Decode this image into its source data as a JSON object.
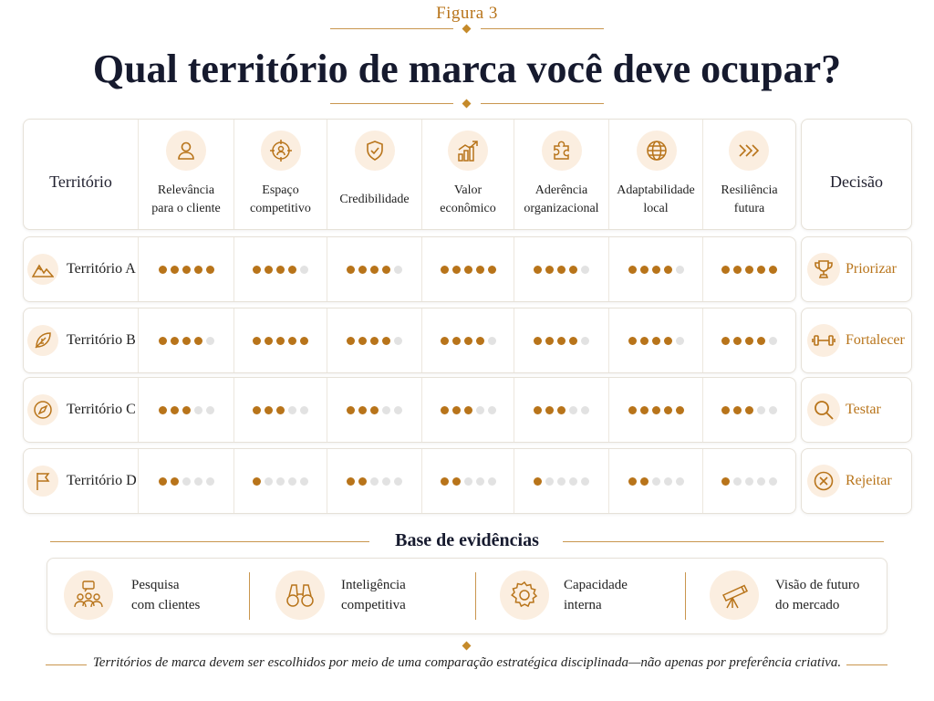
{
  "figure_label": "Figura 3",
  "title": "Qual território de marca você deve ocupar?",
  "table": {
    "row_header": "Território",
    "decision_header": "Decisão",
    "criteria": [
      {
        "label_1": "Relevância",
        "label_2": "para o cliente",
        "icon": "person-icon"
      },
      {
        "label_1": "Espaço",
        "label_2": "competitivo",
        "icon": "target-person-icon"
      },
      {
        "label_1": "Credibilidade",
        "label_2": "",
        "icon": "shield-check-icon"
      },
      {
        "label_1": "Valor",
        "label_2": "econômico",
        "icon": "growth-chart-icon"
      },
      {
        "label_1": "Aderência",
        "label_2": "organizacional",
        "icon": "puzzle-icon"
      },
      {
        "label_1": "Adaptabilidade",
        "label_2": "local",
        "icon": "globe-icon"
      },
      {
        "label_1": "Resiliência",
        "label_2": "futura",
        "icon": "chevrons-right-icon"
      }
    ],
    "rows": [
      {
        "name": "Território A",
        "icon": "mountains-icon",
        "scores": [
          5,
          4,
          4,
          5,
          4,
          4,
          5
        ],
        "decision": "Priorizar",
        "decision_icon": "trophy-icon"
      },
      {
        "name": "Território B",
        "icon": "leaf-icon",
        "scores": [
          4,
          5,
          4,
          4,
          4,
          4,
          4
        ],
        "decision": "Fortalecer",
        "decision_icon": "dumbbell-icon"
      },
      {
        "name": "Território C",
        "icon": "compass-icon",
        "scores": [
          3,
          3,
          3,
          3,
          3,
          5,
          3
        ],
        "decision": "Testar",
        "decision_icon": "magnifier-icon"
      },
      {
        "name": "Território D",
        "icon": "flag-icon",
        "scores": [
          2,
          1,
          2,
          2,
          1,
          2,
          1
        ],
        "decision": "Rejeitar",
        "decision_icon": "x-circle-icon"
      }
    ],
    "max_score": 5,
    "accent_color": "#b8741a",
    "empty_dot_color": "#e2e2e2"
  },
  "evidence": {
    "title": "Base de evidências",
    "items": [
      {
        "line_1": "Pesquisa",
        "line_2": "com clientes",
        "icon": "customer-research-icon"
      },
      {
        "line_1": "Inteligência",
        "line_2": "competitiva",
        "icon": "binoculars-icon"
      },
      {
        "line_1": "Capacidade",
        "line_2": "interna",
        "icon": "gear-icon"
      },
      {
        "line_1": "Visão de futuro",
        "line_2": "do mercado",
        "icon": "telescope-icon"
      }
    ]
  },
  "footer": "Territórios de marca devem ser escolhidos por meio de uma comparação estratégica disciplinada—não apenas por preferência criativa."
}
